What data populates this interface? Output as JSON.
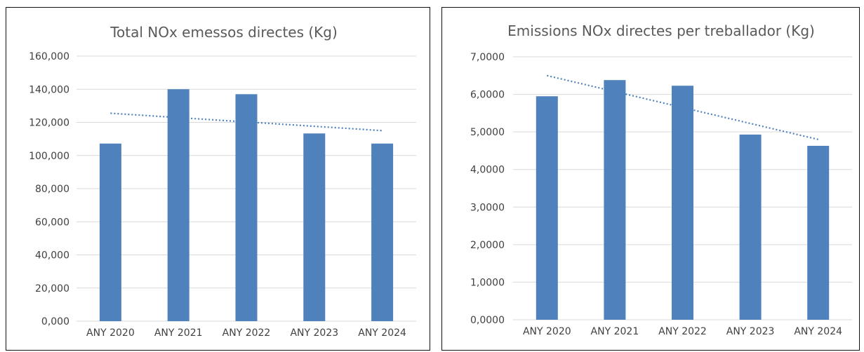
{
  "chart_data": [
    {
      "type": "bar",
      "title": "Total NOx emessos directes (Kg)",
      "categories": [
        "ANY 2020",
        "ANY 2021",
        "ANY 2022",
        "ANY 2023",
        "ANY 2024"
      ],
      "values": [
        107.2,
        140.0,
        137.0,
        113.3,
        107.2
      ],
      "yticks": [
        "0,000",
        "20,000",
        "40,000",
        "60,000",
        "80,000",
        "100,000",
        "120,000",
        "140,000",
        "160,000"
      ],
      "ylim": [
        0,
        160
      ],
      "grid": true,
      "bar_color": "#4f81bd",
      "trendline": {
        "type": "linear",
        "style": "dotted",
        "color": "#4f81bd",
        "start": 125.5,
        "end": 115.0
      }
    },
    {
      "type": "bar",
      "title": "Emissions NOx directes per treballador (Kg)",
      "categories": [
        "ANY 2020",
        "ANY 2021",
        "ANY 2022",
        "ANY 2023",
        "ANY 2024"
      ],
      "values": [
        5.95,
        6.38,
        6.23,
        4.93,
        4.63
      ],
      "yticks": [
        "0,0000",
        "1,0000",
        "2,0000",
        "3,0000",
        "4,0000",
        "5,0000",
        "6,0000",
        "7,0000"
      ],
      "ylim": [
        0,
        7
      ],
      "grid": true,
      "bar_color": "#4f81bd",
      "trendline": {
        "type": "linear",
        "style": "dotted",
        "color": "#4f81bd",
        "start": 6.5,
        "end": 4.8
      }
    }
  ]
}
